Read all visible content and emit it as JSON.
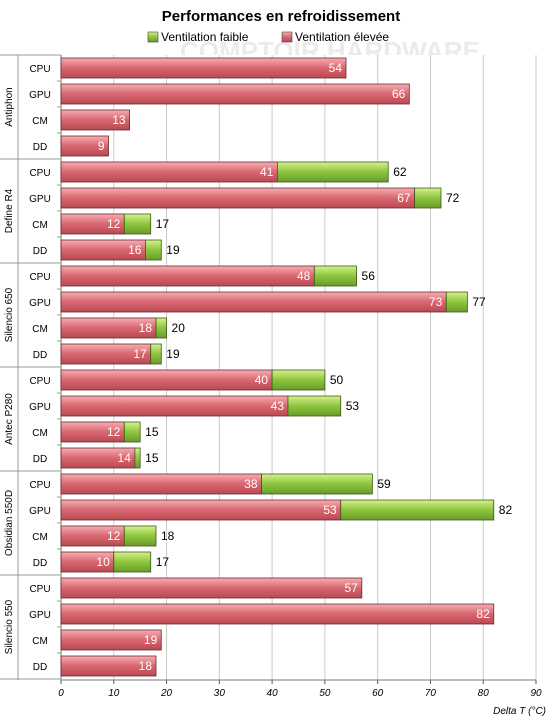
{
  "chart_data": {
    "type": "bar",
    "orientation": "horizontal",
    "stacked": true,
    "title": "Performances en refroidissement",
    "xlabel": "Delta T (°C)",
    "xlim": [
      0,
      90
    ],
    "xticks": [
      0,
      10,
      20,
      30,
      40,
      50,
      60,
      70,
      80,
      90
    ],
    "grid": true,
    "legend_position": "top",
    "watermark": "COMPTOIR HARDWARE",
    "series": [
      {
        "name": "Ventilation faible",
        "color": "#8cc63f"
      },
      {
        "name": "Ventilation élevée",
        "color": "#d9666f"
      }
    ],
    "groups": [
      {
        "name": "Antiphon",
        "bars": [
          {
            "label": "CPU",
            "elevee": 54,
            "faible": null
          },
          {
            "label": "GPU",
            "elevee": 66,
            "faible": null
          },
          {
            "label": "CM",
            "elevee": 13,
            "faible": null
          },
          {
            "label": "DD",
            "elevee": 9,
            "faible": null
          }
        ]
      },
      {
        "name": "Define R4",
        "bars": [
          {
            "label": "CPU",
            "elevee": 41,
            "faible": 62
          },
          {
            "label": "GPU",
            "elevee": 67,
            "faible": 72
          },
          {
            "label": "CM",
            "elevee": 12,
            "faible": 17
          },
          {
            "label": "DD",
            "elevee": 16,
            "faible": 19
          }
        ]
      },
      {
        "name": "Silencio 650",
        "bars": [
          {
            "label": "CPU",
            "elevee": 48,
            "faible": 56
          },
          {
            "label": "GPU",
            "elevee": 73,
            "faible": 77
          },
          {
            "label": "CM",
            "elevee": 18,
            "faible": 20
          },
          {
            "label": "DD",
            "elevee": 17,
            "faible": 19
          }
        ]
      },
      {
        "name": "Antec P280",
        "bars": [
          {
            "label": "CPU",
            "elevee": 40,
            "faible": 50
          },
          {
            "label": "GPU",
            "elevee": 43,
            "faible": 53
          },
          {
            "label": "CM",
            "elevee": 12,
            "faible": 15
          },
          {
            "label": "DD",
            "elevee": 14,
            "faible": 15
          }
        ]
      },
      {
        "name": "Obsidian 550D",
        "bars": [
          {
            "label": "CPU",
            "elevee": 38,
            "faible": 59
          },
          {
            "label": "GPU",
            "elevee": 53,
            "faible": 82
          },
          {
            "label": "CM",
            "elevee": 12,
            "faible": 18
          },
          {
            "label": "DD",
            "elevee": 10,
            "faible": 17
          }
        ]
      },
      {
        "name": "Silencio 550",
        "bars": [
          {
            "label": "CPU",
            "elevee": 57,
            "faible": null
          },
          {
            "label": "GPU",
            "elevee": 82,
            "faible": null
          },
          {
            "label": "CM",
            "elevee": 19,
            "faible": null
          },
          {
            "label": "DD",
            "elevee": 18,
            "faible": null
          }
        ]
      }
    ]
  }
}
